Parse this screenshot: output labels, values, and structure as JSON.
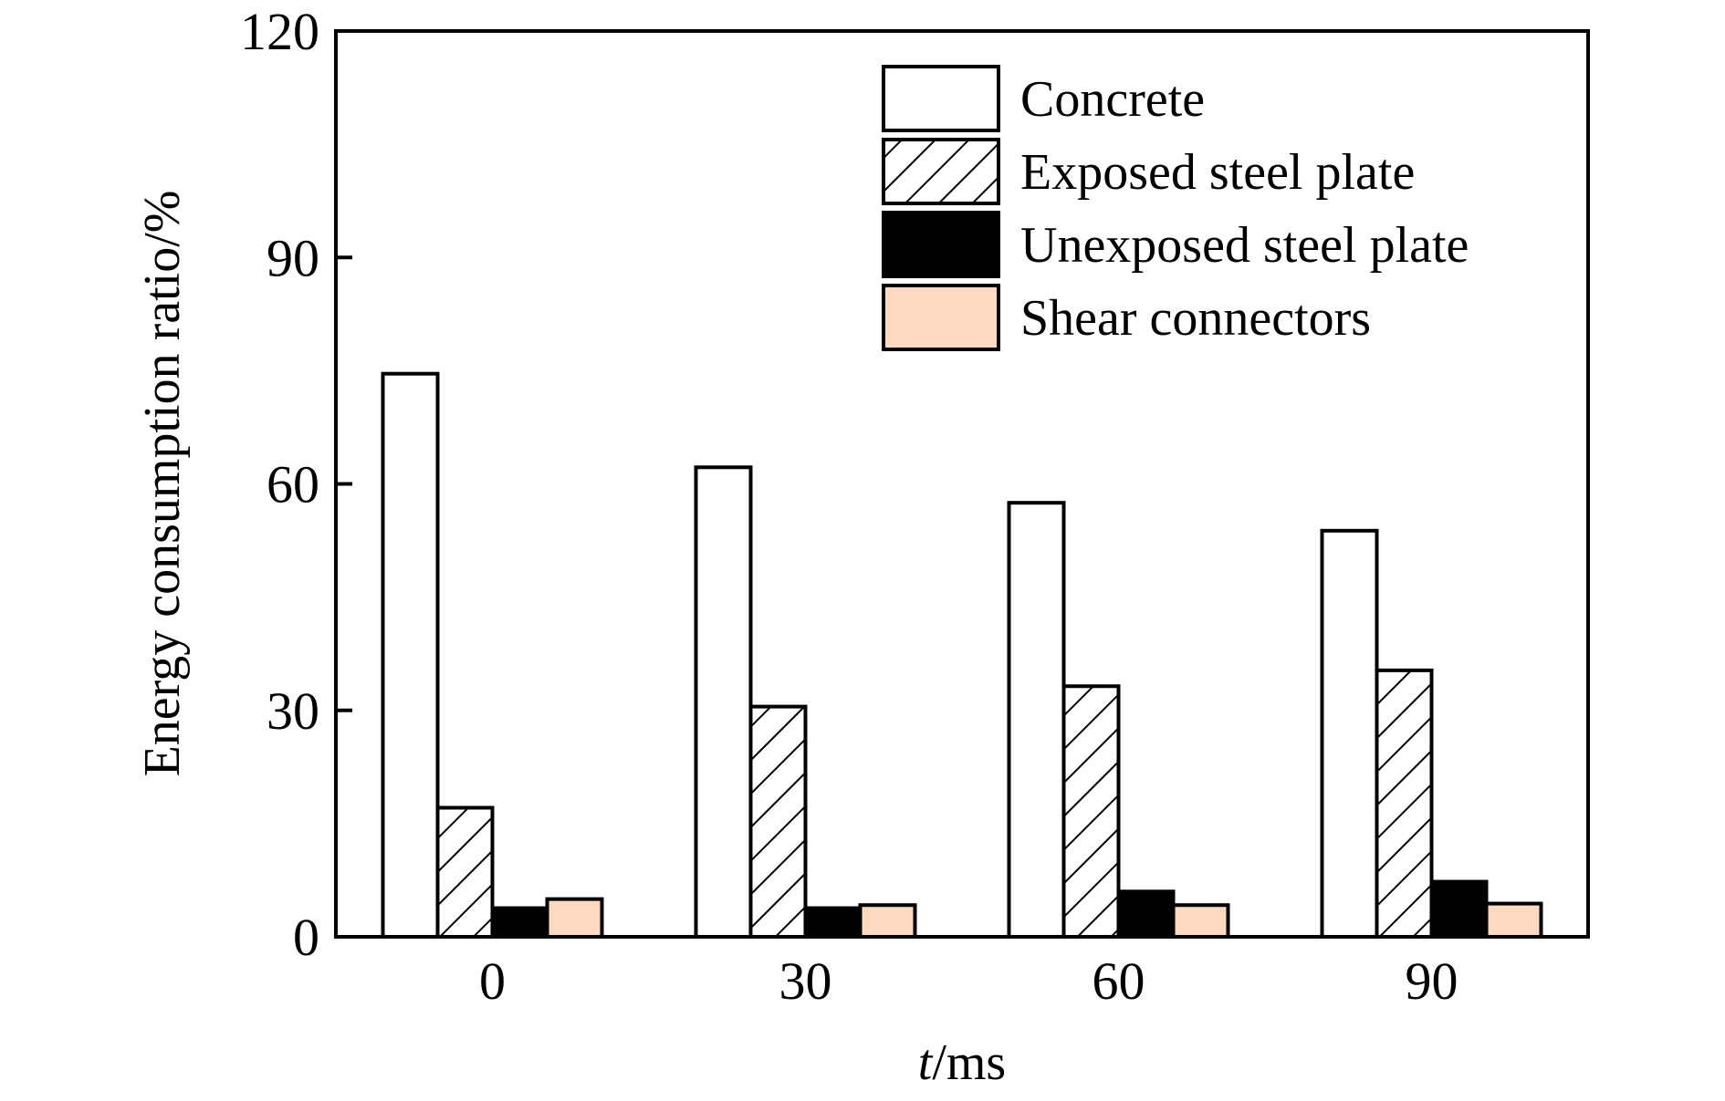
{
  "chart_data": {
    "type": "bar",
    "categories": [
      "0",
      "30",
      "60",
      "90"
    ],
    "series": [
      {
        "name": "Concrete",
        "values": [
          74.6,
          62.2,
          57.5,
          53.8
        ],
        "fill": "#ffffff",
        "pattern": "none"
      },
      {
        "name": "Exposed steel plate",
        "values": [
          17.1,
          30.5,
          33.2,
          35.3
        ],
        "fill": "#ffffff",
        "pattern": "hatch"
      },
      {
        "name": "Unexposed steel plate",
        "values": [
          3.8,
          3.8,
          6.0,
          7.3
        ],
        "fill": "#000000",
        "pattern": "none"
      },
      {
        "name": "Shear connectors",
        "values": [
          5.0,
          4.2,
          4.2,
          4.4
        ],
        "fill": "#fdd9bf",
        "pattern": "none"
      }
    ],
    "xlabel": {
      "italic": "t",
      "rest": "/ms"
    },
    "ylabel": "Energy consumption ratio/%",
    "ylim": [
      0,
      120
    ],
    "yticks": [
      0,
      30,
      60,
      90,
      120
    ],
    "grid": false,
    "legend_position": "top-right"
  }
}
